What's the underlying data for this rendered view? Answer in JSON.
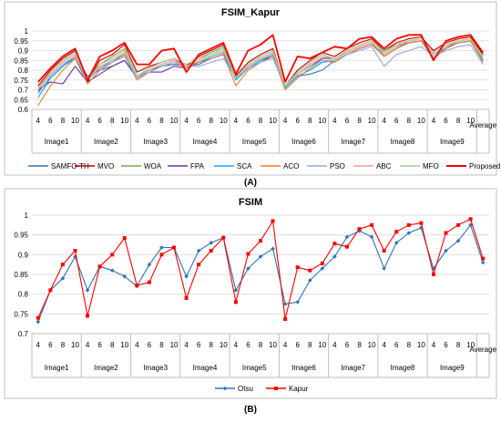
{
  "chart_data": [
    {
      "type": "line",
      "title": "FSIM_Kapur",
      "caption": "(A)",
      "ylim": [
        0.6,
        1.0
      ],
      "yticks": [
        "0.6",
        "0.65",
        "0.7",
        "0.75",
        "0.8",
        "0.85",
        "0.9",
        "0.95",
        "1"
      ],
      "thresholds": [
        "4",
        "6",
        "8",
        "10"
      ],
      "groups": [
        "Image1",
        "Image2",
        "Image3",
        "Image4",
        "Image5",
        "Image6",
        "Image7",
        "Image8",
        "Image9"
      ],
      "final_label": "Average",
      "grid": true,
      "legend_position": "bottom",
      "series": [
        {
          "name": "SAMFO-TH",
          "color": "#2e75b6",
          "values": [
            0.69,
            0.76,
            0.82,
            0.87,
            0.77,
            0.8,
            0.82,
            0.85,
            0.77,
            0.8,
            0.82,
            0.83,
            0.82,
            0.83,
            0.86,
            0.88,
            0.76,
            0.82,
            0.86,
            0.89,
            0.71,
            0.77,
            0.78,
            0.8,
            0.85,
            0.88,
            0.91,
            0.93,
            0.89,
            0.93,
            0.94,
            0.95,
            0.88,
            0.92,
            0.94,
            0.95,
            0.85
          ]
        },
        {
          "name": "MVO",
          "color": "#c00000",
          "values": [
            0.72,
            0.8,
            0.86,
            0.9,
            0.74,
            0.85,
            0.88,
            0.93,
            0.79,
            0.82,
            0.84,
            0.86,
            0.82,
            0.87,
            0.9,
            0.93,
            0.77,
            0.84,
            0.88,
            0.91,
            0.72,
            0.8,
            0.85,
            0.89,
            0.87,
            0.91,
            0.94,
            0.96,
            0.9,
            0.94,
            0.96,
            0.97,
            0.9,
            0.94,
            0.96,
            0.97,
            0.88
          ]
        },
        {
          "name": "WOA",
          "color": "#70ad47",
          "values": [
            0.7,
            0.79,
            0.85,
            0.89,
            0.75,
            0.83,
            0.87,
            0.91,
            0.77,
            0.81,
            0.84,
            0.86,
            0.83,
            0.86,
            0.89,
            0.92,
            0.76,
            0.83,
            0.87,
            0.9,
            0.72,
            0.79,
            0.84,
            0.88,
            0.86,
            0.9,
            0.93,
            0.95,
            0.9,
            0.93,
            0.95,
            0.96,
            0.89,
            0.93,
            0.95,
            0.96,
            0.87
          ]
        },
        {
          "name": "FPA",
          "color": "#7030a0",
          "values": [
            0.7,
            0.74,
            0.73,
            0.82,
            0.74,
            0.78,
            0.82,
            0.85,
            0.76,
            0.79,
            0.79,
            0.82,
            0.81,
            0.84,
            0.86,
            0.88,
            0.76,
            0.81,
            0.85,
            0.87,
            0.72,
            0.78,
            0.82,
            0.86,
            0.86,
            0.89,
            0.92,
            0.94,
            0.87,
            0.91,
            0.94,
            0.95,
            0.86,
            0.91,
            0.94,
            0.95,
            0.85
          ]
        },
        {
          "name": "SCA",
          "color": "#00b0f0",
          "values": [
            0.66,
            0.76,
            0.82,
            0.86,
            0.75,
            0.81,
            0.85,
            0.88,
            0.76,
            0.8,
            0.83,
            0.85,
            0.82,
            0.84,
            0.87,
            0.89,
            0.75,
            0.81,
            0.85,
            0.88,
            0.71,
            0.77,
            0.8,
            0.84,
            0.85,
            0.88,
            0.91,
            0.93,
            0.88,
            0.92,
            0.94,
            0.95,
            0.88,
            0.91,
            0.94,
            0.95,
            0.85
          ]
        },
        {
          "name": "ACO",
          "color": "#ed7d31",
          "values": [
            0.62,
            0.72,
            0.8,
            0.86,
            0.73,
            0.8,
            0.84,
            0.88,
            0.75,
            0.79,
            0.82,
            0.84,
            0.81,
            0.84,
            0.86,
            0.88,
            0.72,
            0.8,
            0.84,
            0.87,
            0.7,
            0.76,
            0.81,
            0.85,
            0.84,
            0.88,
            0.91,
            0.93,
            0.87,
            0.91,
            0.94,
            0.95,
            0.86,
            0.91,
            0.94,
            0.95,
            0.84
          ]
        },
        {
          "name": "PSO",
          "color": "#8faadc",
          "values": [
            0.68,
            0.77,
            0.83,
            0.87,
            0.76,
            0.81,
            0.84,
            0.87,
            0.76,
            0.79,
            0.82,
            0.84,
            0.82,
            0.82,
            0.84,
            0.86,
            0.76,
            0.81,
            0.84,
            0.86,
            0.72,
            0.78,
            0.82,
            0.85,
            0.85,
            0.88,
            0.9,
            0.92,
            0.82,
            0.88,
            0.9,
            0.92,
            0.87,
            0.9,
            0.92,
            0.93,
            0.83
          ]
        },
        {
          "name": "ABC",
          "color": "#ff9999",
          "values": [
            0.7,
            0.78,
            0.84,
            0.88,
            0.75,
            0.82,
            0.85,
            0.89,
            0.77,
            0.8,
            0.83,
            0.85,
            0.82,
            0.85,
            0.88,
            0.9,
            0.76,
            0.82,
            0.86,
            0.89,
            0.72,
            0.78,
            0.83,
            0.87,
            0.86,
            0.89,
            0.92,
            0.94,
            0.88,
            0.92,
            0.95,
            0.96,
            0.88,
            0.92,
            0.95,
            0.96,
            0.86
          ]
        },
        {
          "name": "MFO",
          "color": "#a9d18e",
          "values": [
            0.71,
            0.79,
            0.85,
            0.89,
            0.75,
            0.83,
            0.86,
            0.9,
            0.77,
            0.81,
            0.84,
            0.86,
            0.83,
            0.86,
            0.88,
            0.91,
            0.76,
            0.83,
            0.87,
            0.9,
            0.72,
            0.79,
            0.84,
            0.88,
            0.86,
            0.9,
            0.93,
            0.95,
            0.89,
            0.93,
            0.95,
            0.96,
            0.89,
            0.93,
            0.95,
            0.96,
            0.87
          ]
        },
        {
          "name": "Proposed",
          "color": "#ff0000",
          "values": [
            0.74,
            0.81,
            0.87,
            0.91,
            0.75,
            0.87,
            0.9,
            0.94,
            0.83,
            0.83,
            0.9,
            0.91,
            0.79,
            0.88,
            0.91,
            0.94,
            0.78,
            0.9,
            0.93,
            0.98,
            0.74,
            0.87,
            0.86,
            0.89,
            0.92,
            0.91,
            0.96,
            0.97,
            0.91,
            0.96,
            0.98,
            0.98,
            0.85,
            0.95,
            0.97,
            0.98,
            0.89
          ]
        }
      ]
    },
    {
      "type": "line",
      "title": "FSIM",
      "caption": "(B)",
      "ylim": [
        0.7,
        1.0
      ],
      "yticks": [
        "0.7",
        "0.75",
        "0.8",
        "0.85",
        "0.9",
        "0.95",
        "1"
      ],
      "thresholds": [
        "4",
        "6",
        "8",
        "10"
      ],
      "groups": [
        "Image1",
        "Image2",
        "Image3",
        "Image4",
        "Image5",
        "Image6",
        "Image7",
        "Image8",
        "Image9"
      ],
      "final_label": "Average",
      "grid": true,
      "legend_position": "bottom",
      "series": [
        {
          "name": "Otsu",
          "color": "#2e75b6",
          "marker": "diamond",
          "values": [
            0.73,
            0.81,
            0.84,
            0.895,
            0.81,
            0.87,
            0.86,
            0.845,
            0.82,
            0.875,
            0.918,
            0.918,
            0.845,
            0.91,
            0.93,
            0.943,
            0.81,
            0.865,
            0.895,
            0.915,
            0.775,
            0.78,
            0.835,
            0.865,
            0.895,
            0.945,
            0.96,
            0.945,
            0.865,
            0.93,
            0.955,
            0.968,
            0.865,
            0.91,
            0.935,
            0.975,
            0.88
          ]
        },
        {
          "name": "Kapur",
          "color": "#ff0000",
          "marker": "square",
          "values": [
            0.74,
            0.81,
            0.875,
            0.91,
            0.745,
            0.87,
            0.9,
            0.942,
            0.822,
            0.83,
            0.9,
            0.918,
            0.79,
            0.875,
            0.91,
            0.943,
            0.78,
            0.902,
            0.935,
            0.985,
            0.737,
            0.868,
            0.86,
            0.878,
            0.928,
            0.92,
            0.965,
            0.975,
            0.91,
            0.958,
            0.975,
            0.98,
            0.85,
            0.955,
            0.975,
            0.99,
            0.89
          ]
        }
      ]
    }
  ]
}
